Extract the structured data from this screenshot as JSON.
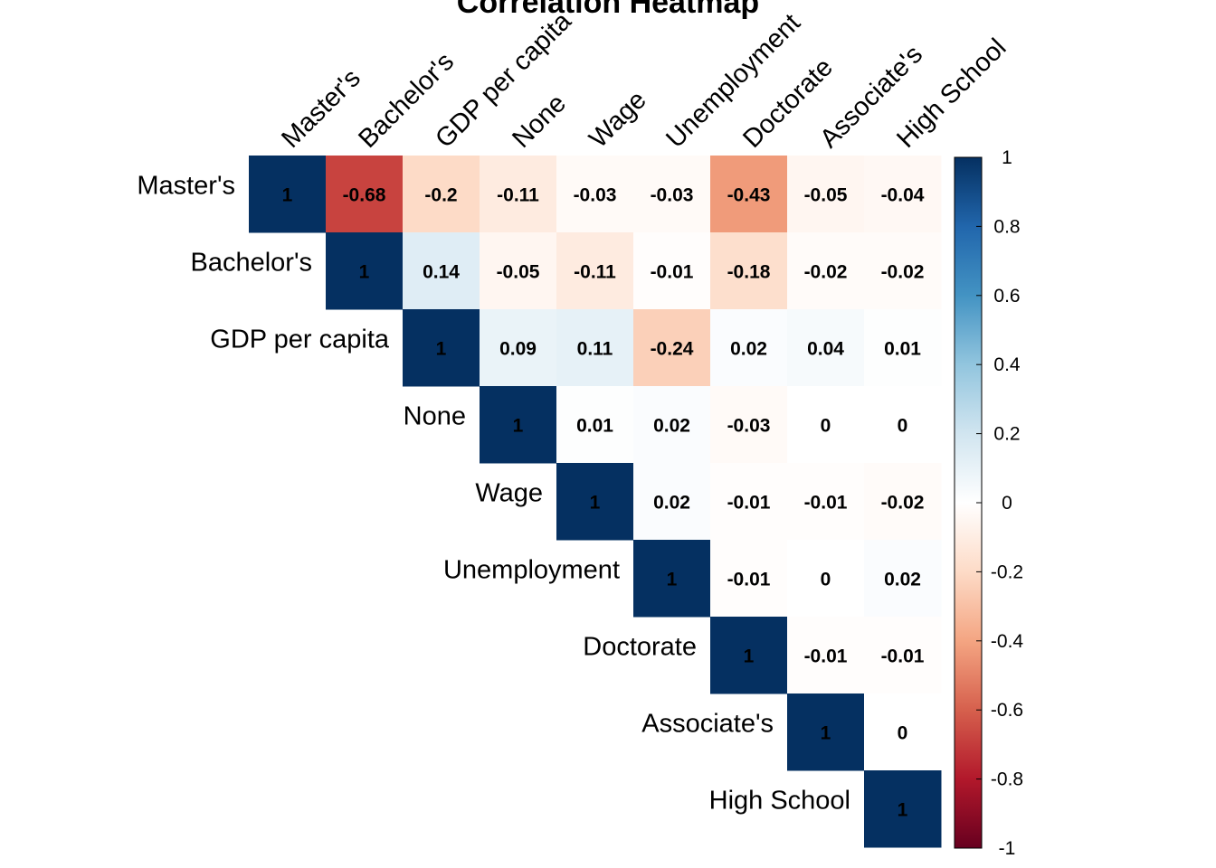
{
  "chart_data": {
    "type": "heatmap",
    "title": "Correlation Heatmap",
    "variables": [
      "Master's",
      "Bachelor's",
      "GDP per capita",
      "None",
      "Wage",
      "Unemployment",
      "Doctorate",
      "Associate's",
      "High School"
    ],
    "matrix": [
      [
        1,
        -0.68,
        -0.2,
        -0.11,
        -0.03,
        -0.03,
        -0.43,
        -0.05,
        -0.04
      ],
      [
        null,
        1,
        0.14,
        -0.05,
        -0.11,
        -0.01,
        -0.18,
        -0.02,
        -0.02
      ],
      [
        null,
        null,
        1,
        0.09,
        0.11,
        -0.24,
        0.02,
        0.04,
        0.01
      ],
      [
        null,
        null,
        null,
        1,
        0.01,
        0.02,
        -0.03,
        0,
        0
      ],
      [
        null,
        null,
        null,
        null,
        1,
        0.02,
        -0.01,
        -0.01,
        -0.02
      ],
      [
        null,
        null,
        null,
        null,
        null,
        1,
        -0.01,
        0,
        0.02
      ],
      [
        null,
        null,
        null,
        null,
        null,
        null,
        1,
        -0.01,
        -0.01
      ],
      [
        null,
        null,
        null,
        null,
        null,
        null,
        null,
        1,
        0
      ],
      [
        null,
        null,
        null,
        null,
        null,
        null,
        null,
        null,
        1
      ]
    ],
    "layout": "upper-triangle",
    "colorbar": {
      "range": [
        -1,
        1
      ],
      "ticks": [
        1,
        0.8,
        0.6,
        0.4,
        0.2,
        0,
        -0.2,
        -0.4,
        -0.6,
        -0.8,
        -1
      ],
      "tick_labels": [
        "1",
        "0.8",
        "0.6",
        "0.4",
        "0.2",
        "0",
        "-0.2",
        "-0.4",
        "-0.6",
        "-0.8",
        "-1"
      ],
      "colors": [
        "#67001F",
        "#B2182B",
        "#D6604D",
        "#F4A582",
        "#FDDBC7",
        "#FFFFFF",
        "#D1E5F0",
        "#92C5DE",
        "#4393C3",
        "#2166AC",
        "#053061"
      ]
    }
  }
}
